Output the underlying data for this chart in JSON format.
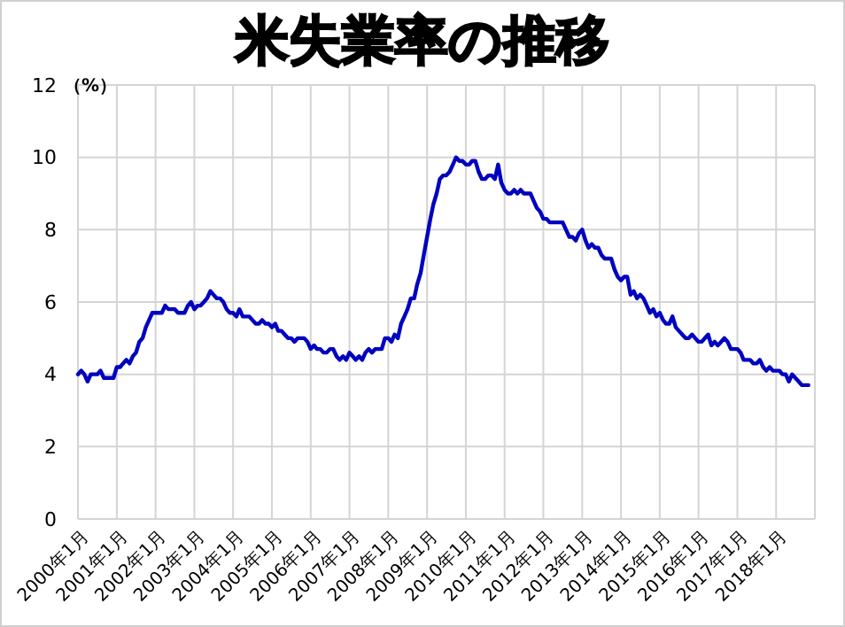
{
  "chart_data": {
    "type": "line",
    "title": "米失業率の推移",
    "ylabel": "（%）",
    "x": [
      "2000-01",
      "2000-02",
      "2000-03",
      "2000-04",
      "2000-05",
      "2000-06",
      "2000-07",
      "2000-08",
      "2000-09",
      "2000-10",
      "2000-11",
      "2000-12",
      "2001-01",
      "2001-02",
      "2001-03",
      "2001-04",
      "2001-05",
      "2001-06",
      "2001-07",
      "2001-08",
      "2001-09",
      "2001-10",
      "2001-11",
      "2001-12",
      "2002-01",
      "2002-02",
      "2002-03",
      "2002-04",
      "2002-05",
      "2002-06",
      "2002-07",
      "2002-08",
      "2002-09",
      "2002-10",
      "2002-11",
      "2002-12",
      "2003-01",
      "2003-02",
      "2003-03",
      "2003-04",
      "2003-05",
      "2003-06",
      "2003-07",
      "2003-08",
      "2003-09",
      "2003-10",
      "2003-11",
      "2003-12",
      "2004-01",
      "2004-02",
      "2004-03",
      "2004-04",
      "2004-05",
      "2004-06",
      "2004-07",
      "2004-08",
      "2004-09",
      "2004-10",
      "2004-11",
      "2004-12",
      "2005-01",
      "2005-02",
      "2005-03",
      "2005-04",
      "2005-05",
      "2005-06",
      "2005-07",
      "2005-08",
      "2005-09",
      "2005-10",
      "2005-11",
      "2005-12",
      "2006-01",
      "2006-02",
      "2006-03",
      "2006-04",
      "2006-05",
      "2006-06",
      "2006-07",
      "2006-08",
      "2006-09",
      "2006-10",
      "2006-11",
      "2006-12",
      "2007-01",
      "2007-02",
      "2007-03",
      "2007-04",
      "2007-05",
      "2007-06",
      "2007-07",
      "2007-08",
      "2007-09",
      "2007-10",
      "2007-11",
      "2007-12",
      "2008-01",
      "2008-02",
      "2008-03",
      "2008-04",
      "2008-05",
      "2008-06",
      "2008-07",
      "2008-08",
      "2008-09",
      "2008-10",
      "2008-11",
      "2008-12",
      "2009-01",
      "2009-02",
      "2009-03",
      "2009-04",
      "2009-05",
      "2009-06",
      "2009-07",
      "2009-08",
      "2009-09",
      "2009-10",
      "2009-11",
      "2009-12",
      "2010-01",
      "2010-02",
      "2010-03",
      "2010-04",
      "2010-05",
      "2010-06",
      "2010-07",
      "2010-08",
      "2010-09",
      "2010-10",
      "2010-11",
      "2010-12",
      "2011-01",
      "2011-02",
      "2011-03",
      "2011-04",
      "2011-05",
      "2011-06",
      "2011-07",
      "2011-08",
      "2011-09",
      "2011-10",
      "2011-11",
      "2011-12",
      "2012-01",
      "2012-02",
      "2012-03",
      "2012-04",
      "2012-05",
      "2012-06",
      "2012-07",
      "2012-08",
      "2012-09",
      "2012-10",
      "2012-11",
      "2012-12",
      "2013-01",
      "2013-02",
      "2013-03",
      "2013-04",
      "2013-05",
      "2013-06",
      "2013-07",
      "2013-08",
      "2013-09",
      "2013-10",
      "2013-11",
      "2013-12",
      "2014-01",
      "2014-02",
      "2014-03",
      "2014-04",
      "2014-05",
      "2014-06",
      "2014-07",
      "2014-08",
      "2014-09",
      "2014-10",
      "2014-11",
      "2014-12",
      "2015-01",
      "2015-02",
      "2015-03",
      "2015-04",
      "2015-05",
      "2015-06",
      "2015-07",
      "2015-08",
      "2015-09",
      "2015-10",
      "2015-11",
      "2015-12",
      "2016-01",
      "2016-02",
      "2016-03",
      "2016-04",
      "2016-05",
      "2016-06",
      "2016-07",
      "2016-08",
      "2016-09",
      "2016-10",
      "2016-11",
      "2016-12",
      "2017-01",
      "2017-02",
      "2017-03",
      "2017-04",
      "2017-05",
      "2017-06",
      "2017-07",
      "2017-08",
      "2017-09",
      "2017-10",
      "2017-11",
      "2017-12",
      "2018-01",
      "2018-02",
      "2018-03",
      "2018-04",
      "2018-05",
      "2018-06",
      "2018-07",
      "2018-08",
      "2018-09",
      "2018-10",
      "2018-11"
    ],
    "series": [
      {
        "color": "#0000c0",
        "values": [
          4.0,
          4.1,
          4.0,
          3.8,
          4.0,
          4.0,
          4.0,
          4.1,
          3.9,
          3.9,
          3.9,
          3.9,
          4.2,
          4.2,
          4.3,
          4.4,
          4.3,
          4.5,
          4.6,
          4.9,
          5.0,
          5.3,
          5.5,
          5.7,
          5.7,
          5.7,
          5.7,
          5.9,
          5.8,
          5.8,
          5.8,
          5.7,
          5.7,
          5.7,
          5.9,
          6.0,
          5.8,
          5.9,
          5.9,
          6.0,
          6.1,
          6.3,
          6.2,
          6.1,
          6.1,
          6.0,
          5.8,
          5.7,
          5.7,
          5.6,
          5.8,
          5.6,
          5.6,
          5.6,
          5.5,
          5.4,
          5.4,
          5.5,
          5.4,
          5.4,
          5.3,
          5.4,
          5.2,
          5.2,
          5.1,
          5.0,
          5.0,
          4.9,
          5.0,
          5.0,
          5.0,
          4.9,
          4.7,
          4.8,
          4.7,
          4.7,
          4.6,
          4.6,
          4.7,
          4.7,
          4.5,
          4.4,
          4.5,
          4.4,
          4.6,
          4.5,
          4.4,
          4.5,
          4.4,
          4.6,
          4.7,
          4.6,
          4.7,
          4.7,
          4.7,
          5.0,
          5.0,
          4.9,
          5.1,
          5.0,
          5.4,
          5.6,
          5.8,
          6.1,
          6.1,
          6.5,
          6.8,
          7.3,
          7.8,
          8.3,
          8.7,
          9.0,
          9.4,
          9.5,
          9.5,
          9.6,
          9.8,
          10.0,
          9.9,
          9.9,
          9.8,
          9.8,
          9.9,
          9.9,
          9.6,
          9.4,
          9.4,
          9.5,
          9.5,
          9.4,
          9.8,
          9.3,
          9.1,
          9.0,
          9.0,
          9.1,
          9.0,
          9.1,
          9.0,
          9.0,
          9.0,
          8.8,
          8.6,
          8.5,
          8.3,
          8.3,
          8.2,
          8.2,
          8.2,
          8.2,
          8.2,
          8.0,
          7.8,
          7.8,
          7.7,
          7.9,
          8.0,
          7.7,
          7.5,
          7.6,
          7.5,
          7.5,
          7.3,
          7.2,
          7.2,
          7.2,
          6.9,
          6.7,
          6.6,
          6.7,
          6.7,
          6.2,
          6.3,
          6.1,
          6.2,
          6.1,
          5.9,
          5.7,
          5.8,
          5.6,
          5.7,
          5.5,
          5.4,
          5.4,
          5.6,
          5.3,
          5.2,
          5.1,
          5.0,
          5.0,
          5.1,
          5.0,
          4.9,
          4.9,
          5.0,
          5.1,
          4.8,
          4.9,
          4.8,
          4.9,
          5.0,
          4.9,
          4.7,
          4.7,
          4.7,
          4.6,
          4.4,
          4.4,
          4.4,
          4.3,
          4.3,
          4.4,
          4.2,
          4.1,
          4.2,
          4.1,
          4.1,
          4.1,
          4.0,
          4.0,
          3.8,
          4.0,
          3.9,
          3.8,
          3.7,
          3.7,
          3.7
        ]
      }
    ],
    "xlim": [
      "2000-01",
      "2019-01"
    ],
    "xticks": [
      {
        "value": "2000-01",
        "label": "2000年1月"
      },
      {
        "value": "2001-01",
        "label": "2001年1月"
      },
      {
        "value": "2002-01",
        "label": "2002年1月"
      },
      {
        "value": "2003-01",
        "label": "2003年1月"
      },
      {
        "value": "2004-01",
        "label": "2004年1月"
      },
      {
        "value": "2005-01",
        "label": "2005年1月"
      },
      {
        "value": "2006-01",
        "label": "2006年1月"
      },
      {
        "value": "2007-01",
        "label": "2007年1月"
      },
      {
        "value": "2008-01",
        "label": "2008年1月"
      },
      {
        "value": "2009-01",
        "label": "2009年1月"
      },
      {
        "value": "2010-01",
        "label": "2010年1月"
      },
      {
        "value": "2011-01",
        "label": "2011年1月"
      },
      {
        "value": "2012-01",
        "label": "2012年1月"
      },
      {
        "value": "2013-01",
        "label": "2013年1月"
      },
      {
        "value": "2014-01",
        "label": "2014年1月"
      },
      {
        "value": "2015-01",
        "label": "2015年1月"
      },
      {
        "value": "2016-01",
        "label": "2016年1月"
      },
      {
        "value": "2017-01",
        "label": "2017年1月"
      },
      {
        "value": "2018-01",
        "label": "2018年1月"
      }
    ],
    "ylim": [
      0,
      12
    ],
    "yticks": [
      0,
      2,
      4,
      6,
      8,
      10,
      12
    ],
    "grid": true,
    "marker": "none",
    "line_style": "solid"
  }
}
